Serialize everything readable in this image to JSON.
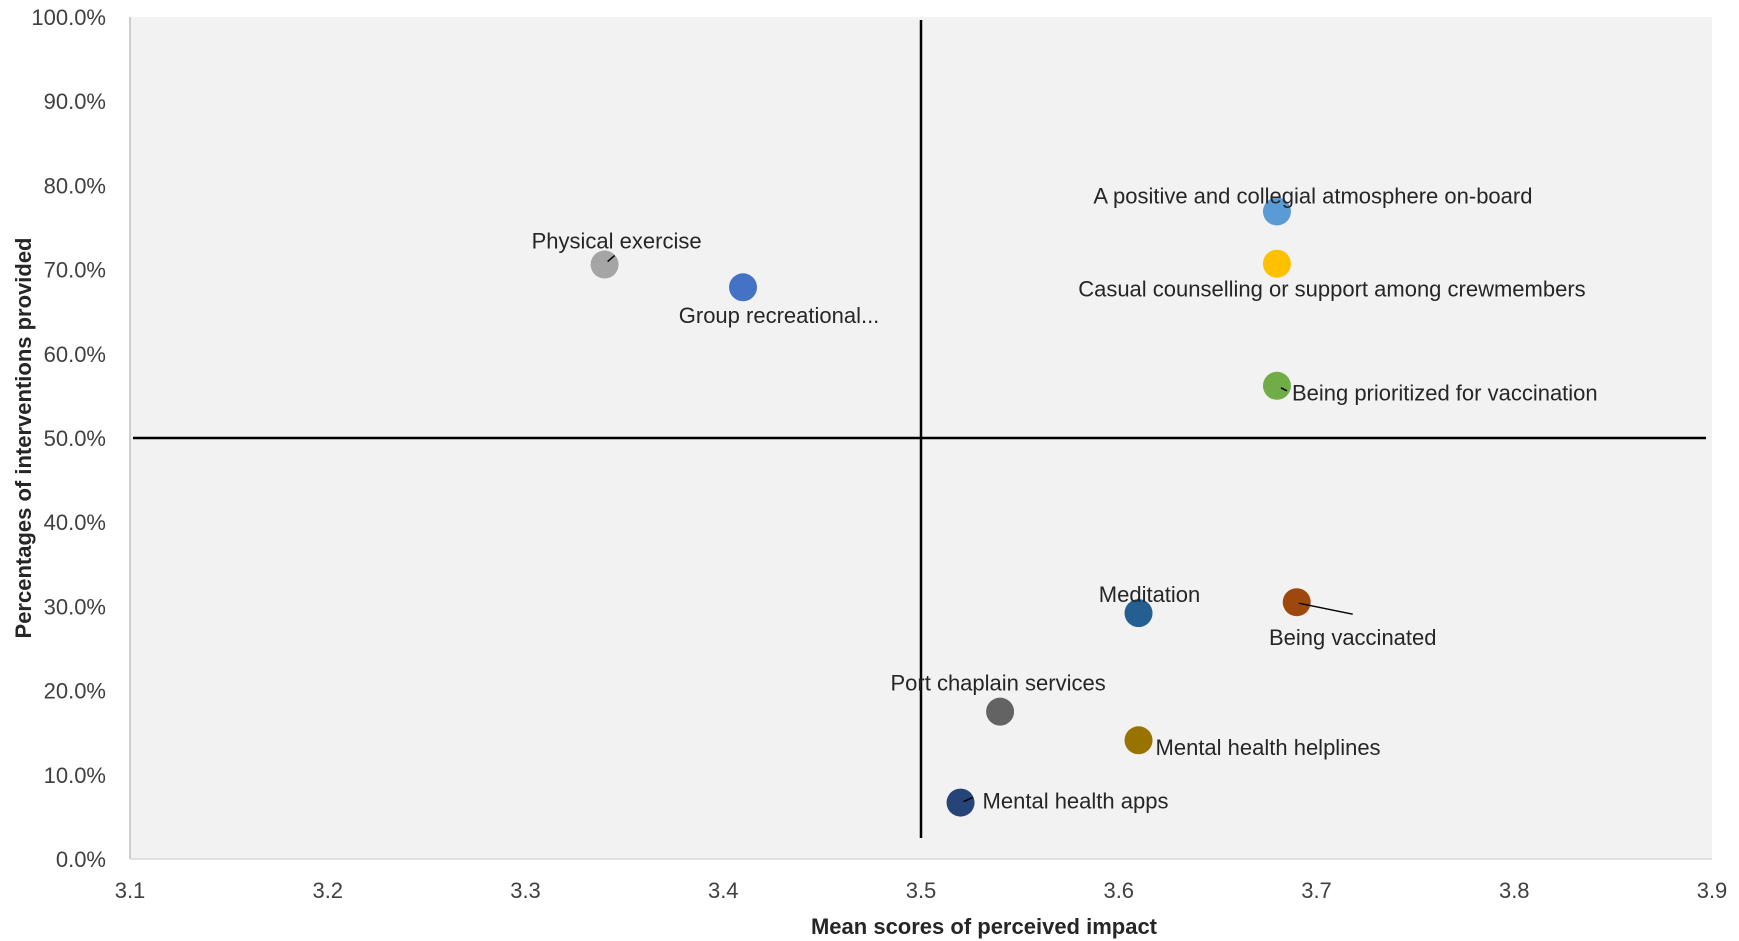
{
  "chart_data": {
    "type": "scatter",
    "title": "",
    "xlabel": "Mean scores of perceived impact",
    "ylabel": "Percentages of interventions provided",
    "xlim": [
      3.1,
      3.9
    ],
    "ylim": [
      0,
      100
    ],
    "x_ticks": [
      "3.1",
      "3.2",
      "3.3",
      "3.4",
      "3.5",
      "3.6",
      "3.7",
      "3.8",
      "3.9"
    ],
    "y_ticks": [
      "0.0%",
      "10.0%",
      "20.0%",
      "30.0%",
      "40.0%",
      "50.0%",
      "60.0%",
      "70.0%",
      "80.0%",
      "90.0%",
      "100.0%"
    ],
    "grid": false,
    "reference_lines": {
      "x": 3.5,
      "y": 50
    },
    "points": [
      {
        "label": "A positive and collegial atmosphere on-board",
        "x": 3.68,
        "y": 76.9,
        "color": "#5b9bd5"
      },
      {
        "label": "Casual counselling or support among crewmembers",
        "x": 3.68,
        "y": 70.7,
        "color": "#ffc000"
      },
      {
        "label": "Being prioritized for vaccination",
        "x": 3.68,
        "y": 56.2,
        "color": "#70ad47"
      },
      {
        "label": "Physical exercise",
        "x": 3.34,
        "y": 70.6,
        "color": "#a5a5a5"
      },
      {
        "label": "Group recreational...",
        "x": 3.41,
        "y": 67.9,
        "color": "#4472c4"
      },
      {
        "label": "Meditation",
        "x": 3.61,
        "y": 29.2,
        "color": "#255e91"
      },
      {
        "label": "Being vaccinated",
        "x": 3.69,
        "y": 30.5,
        "color": "#9e480e"
      },
      {
        "label": "Port chaplain services",
        "x": 3.54,
        "y": 17.5,
        "color": "#636363"
      },
      {
        "label": "Mental health helplines",
        "x": 3.61,
        "y": 14.1,
        "color": "#997300"
      },
      {
        "label": "Mental health apps",
        "x": 3.52,
        "y": 6.7,
        "color": "#264478"
      }
    ]
  }
}
